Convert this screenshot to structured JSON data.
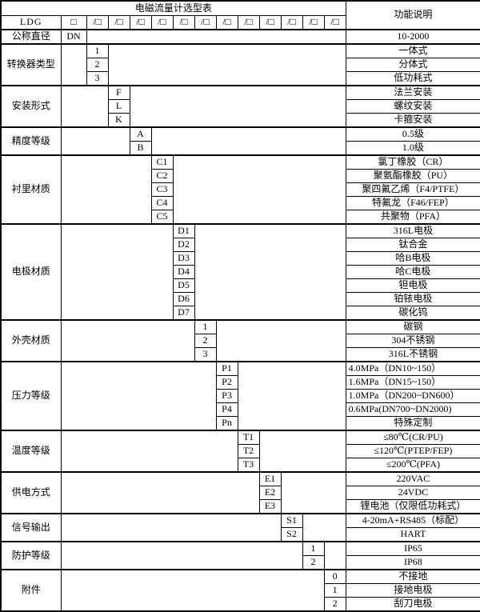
{
  "title": "电磁流量计选型表",
  "function_header": "功能说明",
  "model_code": {
    "prefix": "LDG",
    "base_slot": "□",
    "option_slot": "/□",
    "option_slot_count": 12
  },
  "groups": [
    {
      "label": "公称直径",
      "rows": [
        {
          "code": "DN",
          "func": "10-2000"
        }
      ]
    },
    {
      "label": "转换器类型",
      "rows": [
        {
          "code": "1",
          "func": "一体式"
        },
        {
          "code": "2",
          "func": "分体式"
        },
        {
          "code": "3",
          "func": "低功耗式"
        }
      ]
    },
    {
      "label": "安装形式",
      "rows": [
        {
          "code": "F",
          "func": "法兰安装"
        },
        {
          "code": "L",
          "func": "螺纹安装"
        },
        {
          "code": "K",
          "func": "卡箍安装"
        }
      ]
    },
    {
      "label": "精度等级",
      "rows": [
        {
          "code": "A",
          "func": "0.5级"
        },
        {
          "code": "B",
          "func": "1.0级"
        }
      ]
    },
    {
      "label": "衬里材质",
      "rows": [
        {
          "code": "C1",
          "func": "氯丁橡胶（CR）"
        },
        {
          "code": "C2",
          "func": "聚氨酯橡胶（PU）"
        },
        {
          "code": "C3",
          "func": "聚四氟乙烯（F4/PTFE）"
        },
        {
          "code": "C4",
          "func": "特氟龙（F46/FEP）"
        },
        {
          "code": "C5",
          "func": "共聚物（PFA）"
        }
      ]
    },
    {
      "label": "电极材质",
      "rows": [
        {
          "code": "D1",
          "func": "316L电极"
        },
        {
          "code": "D2",
          "func": "钛合金"
        },
        {
          "code": "D3",
          "func": "哈B电极"
        },
        {
          "code": "D4",
          "func": "哈C电极"
        },
        {
          "code": "D5",
          "func": "钽电极"
        },
        {
          "code": "D6",
          "func": "铂铱电极"
        },
        {
          "code": "D7",
          "func": "碳化钨"
        }
      ]
    },
    {
      "label": "外壳材质",
      "rows": [
        {
          "code": "1",
          "func": "碳钢"
        },
        {
          "code": "2",
          "func": "304不锈钢"
        },
        {
          "code": "3",
          "func": "316L不锈钢"
        }
      ]
    },
    {
      "label": "压力等级",
      "rows": [
        {
          "code": "P1",
          "func": "4.0MPa（DN10~150）",
          "align": "left"
        },
        {
          "code": "P2",
          "func": "1.6MPa（DN15~150）",
          "align": "left"
        },
        {
          "code": "P3",
          "func": "1.0MPa（DN200~DN600）",
          "align": "left"
        },
        {
          "code": "P4",
          "func": "0.6MPa(DN700~DN2000)",
          "align": "left"
        },
        {
          "code": "Pn",
          "func": "特殊定制"
        }
      ]
    },
    {
      "label": "温度等级",
      "rows": [
        {
          "code": "T1",
          "func": "≤80℃(CR/PU)"
        },
        {
          "code": "T2",
          "func": "≤120℃(PTEP/FEP)"
        },
        {
          "code": "T3",
          "func": "≤200℃(PFA)"
        }
      ]
    },
    {
      "label": "供电方式",
      "rows": [
        {
          "code": "E1",
          "func": "220VAC"
        },
        {
          "code": "E2",
          "func": "24VDC"
        },
        {
          "code": "E3",
          "func": "锂电池（仅限低功耗式）"
        }
      ]
    },
    {
      "label": "信号输出",
      "rows": [
        {
          "code": "S1",
          "func": "4-20mA+RS485（标配）"
        },
        {
          "code": "S2",
          "func": "HART"
        }
      ]
    },
    {
      "label": "防护等级",
      "rows": [
        {
          "code": "1",
          "func": "IP65"
        },
        {
          "code": "2",
          "func": "IP68"
        }
      ]
    },
    {
      "label": "附件",
      "rows": [
        {
          "code": "0",
          "func": "不接地"
        },
        {
          "code": "1",
          "func": "接地电极"
        },
        {
          "code": "2",
          "func": "刮刀电极"
        }
      ]
    }
  ]
}
